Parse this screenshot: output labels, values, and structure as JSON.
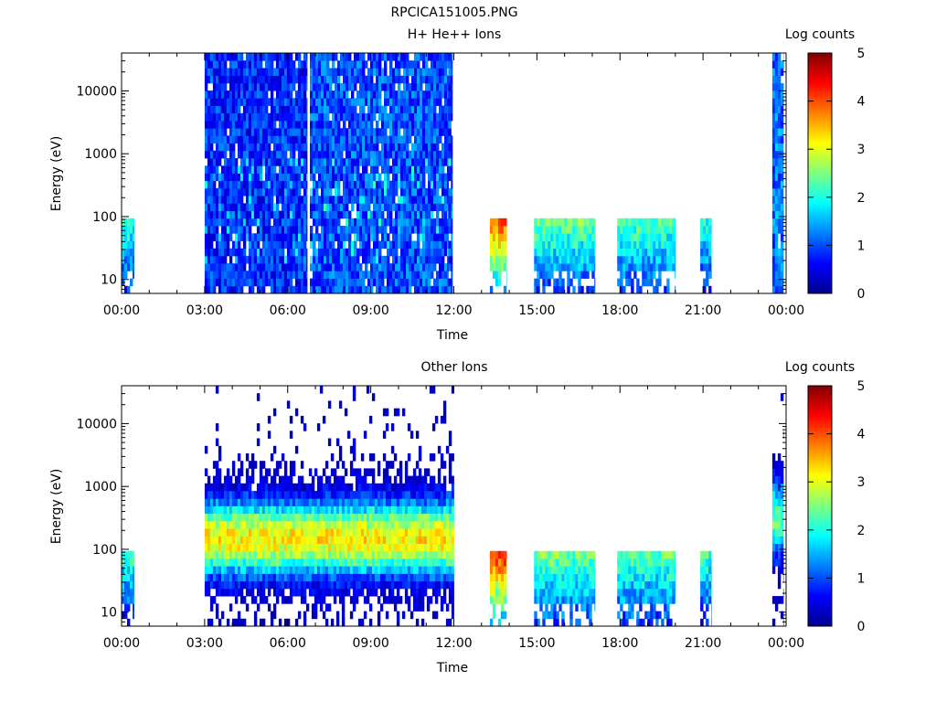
{
  "figure_title": "RPCICA151005.PNG",
  "chart_data": [
    {
      "type": "heatmap",
      "title": "H+ He++ Ions",
      "xlabel": "Time",
      "ylabel": "Energy (eV)",
      "colorbar_label": "Log counts",
      "x_unit": "hours",
      "xlim": [
        0,
        24
      ],
      "ylim": [
        6,
        40000
      ],
      "y_scale": "log",
      "x_ticks": [
        "00:00",
        "03:00",
        "06:00",
        "09:00",
        "12:00",
        "15:00",
        "18:00",
        "21:00",
        "00:00"
      ],
      "y_ticks": [
        "10",
        "100",
        "1000",
        "10000"
      ],
      "y_tick_values": [
        10,
        100,
        1000,
        10000
      ],
      "colorbar_range": [
        0,
        5
      ],
      "colorbar_ticks": [
        "0",
        "1",
        "2",
        "3",
        "4",
        "5"
      ],
      "data_segments": [
        {
          "start": 0.0,
          "end": 0.45,
          "emax": 100,
          "level": 2.0,
          "kind": "low"
        },
        {
          "start": 3.0,
          "end": 6.7,
          "emax": 40000,
          "level": 0.8,
          "kind": "full"
        },
        {
          "start": 6.8,
          "end": 11.8,
          "emax": 40000,
          "level": 1.0,
          "kind": "full"
        },
        {
          "start": 11.8,
          "end": 11.95,
          "emax": 40000,
          "level": 0.9,
          "kind": "full"
        },
        {
          "start": 13.3,
          "end": 13.9,
          "emax": 100,
          "level": 3.8,
          "kind": "low"
        },
        {
          "start": 14.9,
          "end": 17.1,
          "emax": 100,
          "level": 2.3,
          "kind": "low"
        },
        {
          "start": 17.9,
          "end": 20.0,
          "emax": 100,
          "level": 2.2,
          "kind": "low"
        },
        {
          "start": 20.9,
          "end": 21.3,
          "emax": 100,
          "level": 2.0,
          "kind": "low"
        },
        {
          "start": 23.5,
          "end": 23.9,
          "emax": 40000,
          "level": 1.2,
          "kind": "full"
        }
      ]
    },
    {
      "type": "heatmap",
      "title": "Other Ions",
      "xlabel": "Time",
      "ylabel": "Energy (eV)",
      "colorbar_label": "Log counts",
      "x_unit": "hours",
      "xlim": [
        0,
        24
      ],
      "ylim": [
        6,
        40000
      ],
      "y_scale": "log",
      "x_ticks": [
        "00:00",
        "03:00",
        "06:00",
        "09:00",
        "12:00",
        "15:00",
        "18:00",
        "21:00",
        "00:00"
      ],
      "y_ticks": [
        "10",
        "100",
        "1000",
        "10000"
      ],
      "y_tick_values": [
        10,
        100,
        1000,
        10000
      ],
      "colorbar_range": [
        0,
        5
      ],
      "colorbar_ticks": [
        "0",
        "1",
        "2",
        "3",
        "4",
        "5"
      ],
      "data_segments": [
        {
          "start": 0.0,
          "end": 0.45,
          "emax": 100,
          "level": 2.0,
          "kind": "low"
        },
        {
          "start": 3.0,
          "end": 12.0,
          "emax": 40000,
          "level": 3.2,
          "kind": "peak",
          "peak_energy": 150
        },
        {
          "start": 13.3,
          "end": 13.9,
          "emax": 100,
          "level": 4.0,
          "kind": "low"
        },
        {
          "start": 14.9,
          "end": 17.1,
          "emax": 100,
          "level": 2.3,
          "kind": "low"
        },
        {
          "start": 17.9,
          "end": 20.0,
          "emax": 100,
          "level": 2.2,
          "kind": "low"
        },
        {
          "start": 20.9,
          "end": 21.3,
          "emax": 100,
          "level": 2.0,
          "kind": "low"
        },
        {
          "start": 23.5,
          "end": 23.9,
          "emax": 40000,
          "level": 2.4,
          "kind": "peak",
          "peak_energy": 300
        }
      ]
    }
  ]
}
